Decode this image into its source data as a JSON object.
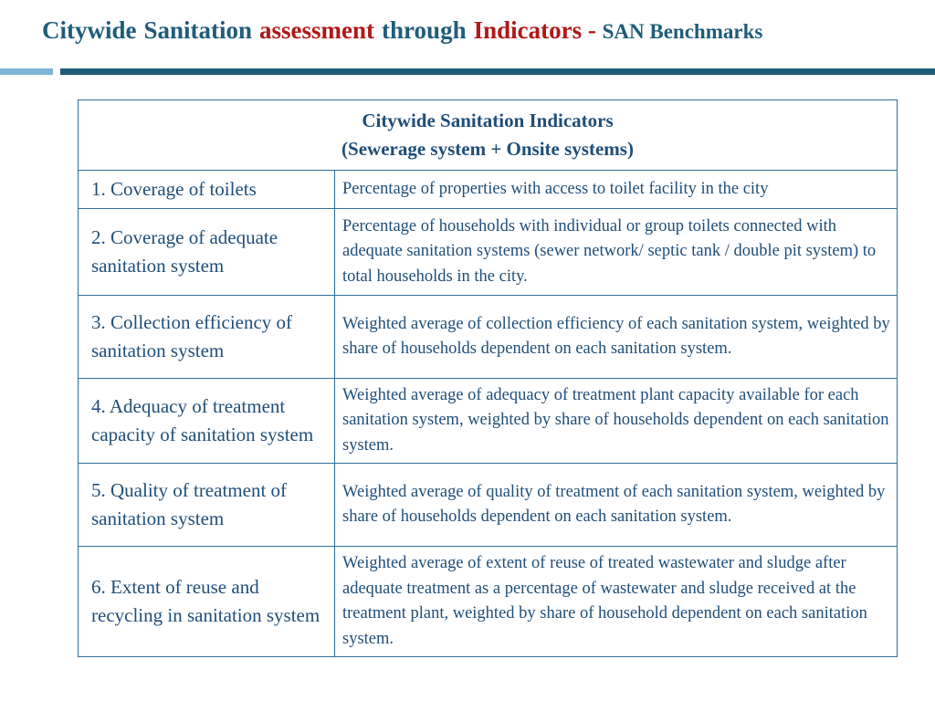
{
  "title": {
    "word1": "Citywide",
    "word2": "Sanitation",
    "word3": "assessment",
    "word4": "through",
    "word5": "Indicators",
    "dash": "-",
    "subtitle": "SAN Benchmarks"
  },
  "colors": {
    "title_blue": "#1f5c7a",
    "title_red": "#b01818",
    "rule_light": "#7fb6d8",
    "rule_dark": "#1f5c7a",
    "table_text": "#1f4e79",
    "table_border": "#2e6f9a"
  },
  "table": {
    "header_line1": "Citywide Sanitation Indicators",
    "header_line2": "(Sewerage system + Onsite systems)",
    "rows": [
      {
        "indicator": "1. Coverage of toilets",
        "description": "Percentage of properties with access to toilet facility in the city"
      },
      {
        "indicator": "2. Coverage of adequate sanitation system",
        "description": "Percentage of households with individual or group toilets connected with adequate sanitation systems (sewer network/ septic tank / double pit system) to total households in the city."
      },
      {
        "indicator": "3.  Collection efficiency of sanitation system",
        "description": "Weighted average of collection efficiency of each sanitation system, weighted by share of households dependent on each sanitation system."
      },
      {
        "indicator": "4. Adequacy of treatment capacity of sanitation system",
        "description": "Weighted average of adequacy of treatment plant capacity available for each sanitation system, weighted by share of households dependent on each sanitation system."
      },
      {
        "indicator": "5. Quality of treatment of sanitation system",
        "description": "Weighted average of quality of treatment of each sanitation system, weighted by share of households dependent on each sanitation system."
      },
      {
        "indicator": "6. Extent of reuse and recycling in sanitation system",
        "description": "Weighted average of extent of reuse of treated wastewater and sludge after adequate treatment as a percentage of wastewater and sludge received at the treatment plant, weighted by share of household dependent on each sanitation system."
      }
    ]
  }
}
